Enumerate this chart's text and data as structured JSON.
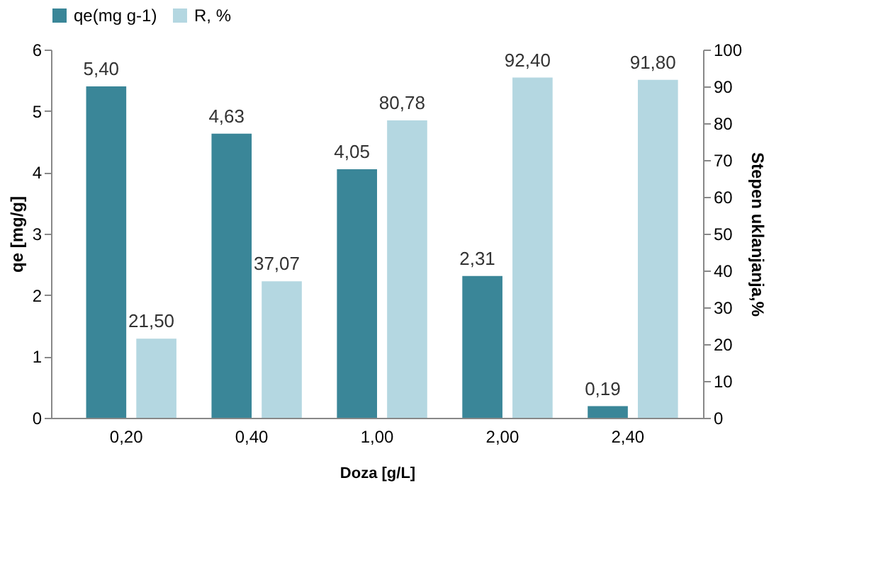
{
  "chart_data": {
    "type": "bar",
    "categories": [
      "0,20",
      "0,40",
      "1,00",
      "2,00",
      "2,40"
    ],
    "xlabel": "Doza [g/L]",
    "ylabel": "qe [mg/g]",
    "y2label": "Stepen uklanjanja,%",
    "ylim": [
      0,
      6
    ],
    "yticks": [
      0,
      1,
      2,
      3,
      4,
      5,
      6
    ],
    "y2lim": [
      0,
      100
    ],
    "y2ticks": [
      0,
      10,
      20,
      30,
      40,
      50,
      60,
      70,
      80,
      90,
      100
    ],
    "legend": "top",
    "grid": false,
    "series": [
      {
        "name": "qe(mg g-1)",
        "color": "#3a8698",
        "values": [
          5.4,
          4.63,
          4.05,
          2.31,
          0.19
        ],
        "value_labels": [
          "5,40",
          "4,63",
          "4,05",
          "2,31",
          "0,19"
        ]
      },
      {
        "name": "R, %",
        "color": "#b4d7e1",
        "axis": "y2",
        "values": [
          21.5,
          37.07,
          80.78,
          92.4,
          91.8
        ],
        "value_labels": [
          "21,50",
          "37,07",
          "80,78",
          "92,40",
          "91,80"
        ]
      }
    ]
  }
}
